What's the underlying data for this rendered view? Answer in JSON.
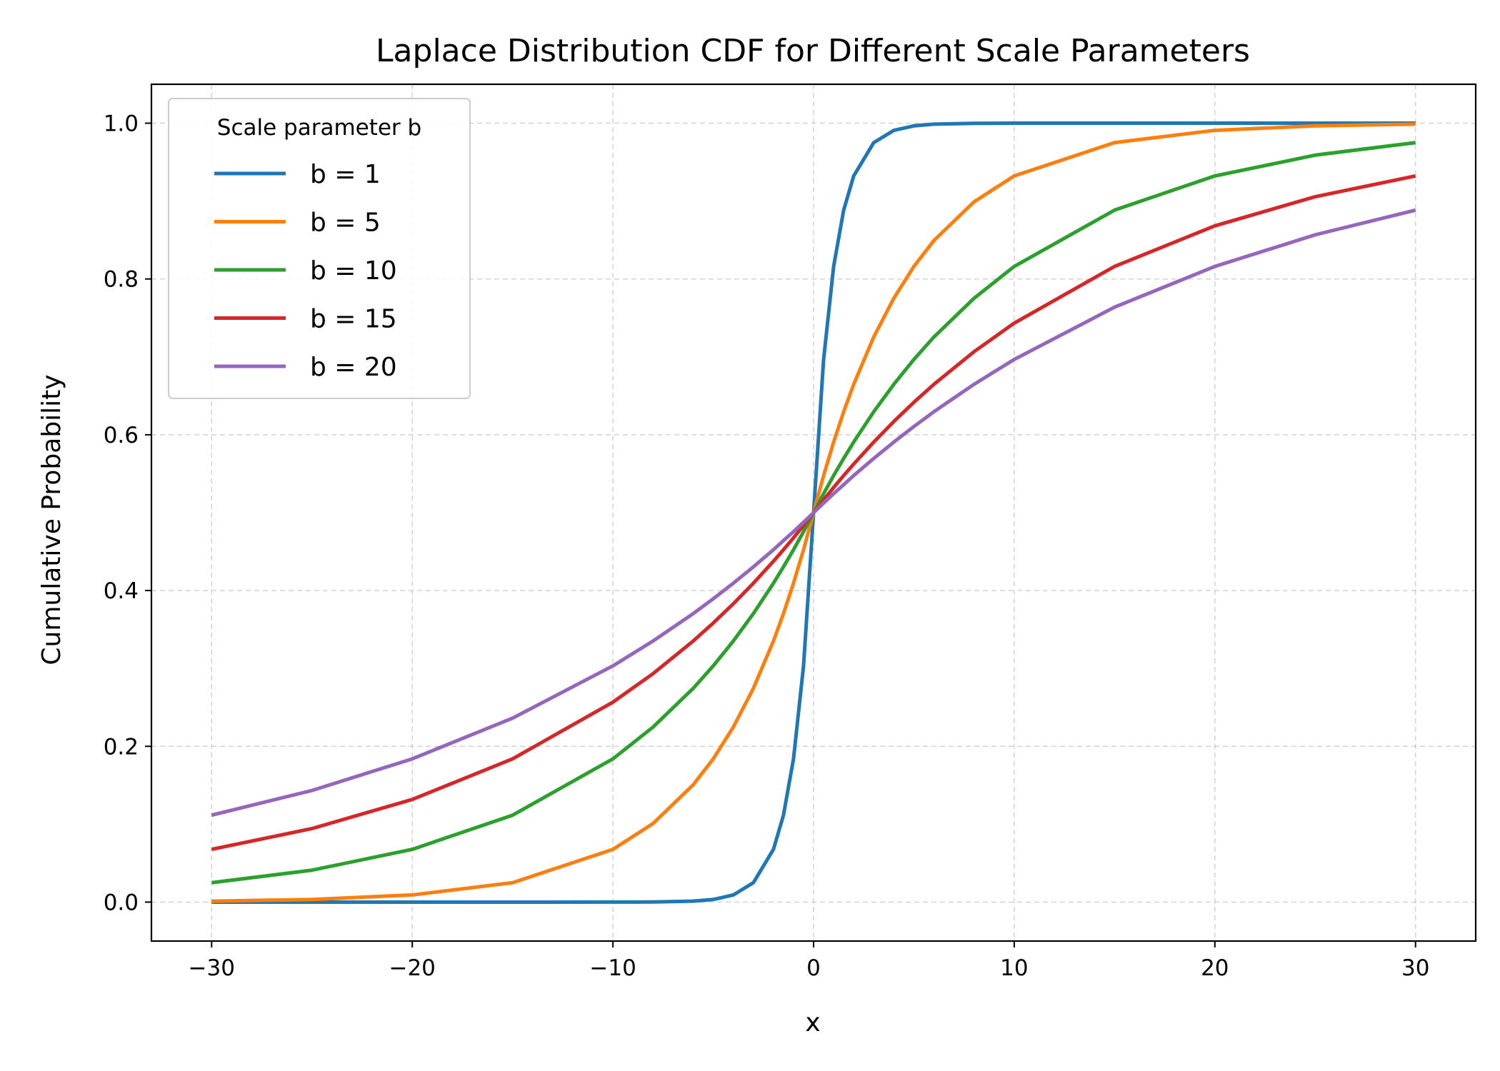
{
  "chart_data": {
    "type": "line",
    "title": "Laplace Distribution CDF for Different Scale Parameters",
    "xlabel": "x",
    "ylabel": "Cumulative Probability",
    "xlim": [
      -33,
      33
    ],
    "ylim": [
      -0.05,
      1.05
    ],
    "xticks": [
      -30,
      -20,
      -10,
      0,
      10,
      20,
      30
    ],
    "xtick_labels": [
      "−30",
      "−20",
      "−10",
      "0",
      "10",
      "20",
      "30"
    ],
    "yticks": [
      0.0,
      0.2,
      0.4,
      0.6,
      0.8,
      1.0
    ],
    "ytick_labels": [
      "0.0",
      "0.2",
      "0.4",
      "0.6",
      "0.8",
      "1.0"
    ],
    "grid": true,
    "legend": {
      "title": "Scale parameter b",
      "placement": "upper-left"
    },
    "x": [
      -30,
      -25,
      -20,
      -15,
      -10,
      -8,
      -6,
      -5,
      -4,
      -3,
      -2,
      -1.5,
      -1,
      -0.5,
      0,
      0.5,
      1,
      1.5,
      2,
      3,
      4,
      5,
      6,
      8,
      10,
      15,
      20,
      25,
      30
    ],
    "series": [
      {
        "name": "b = 1",
        "color": "#1f77b4",
        "values": [
          0.0,
          0.0,
          0.0,
          0.0,
          2e-05,
          0.00017,
          0.00124,
          0.00337,
          0.00916,
          0.0249,
          0.0677,
          0.1116,
          0.1839,
          0.3033,
          0.5,
          0.6967,
          0.8161,
          0.8884,
          0.9323,
          0.9751,
          0.9908,
          0.9966,
          0.9988,
          0.9998,
          1.0,
          1.0,
          1.0,
          1.0,
          1.0
        ]
      },
      {
        "name": "b = 5",
        "color": "#ff7f0e",
        "values": [
          0.0012,
          0.0034,
          0.0092,
          0.0249,
          0.0677,
          0.1009,
          0.1506,
          0.1839,
          0.2247,
          0.2744,
          0.3352,
          0.3704,
          0.4094,
          0.4524,
          0.5,
          0.5476,
          0.5906,
          0.6296,
          0.6648,
          0.7256,
          0.7753,
          0.8161,
          0.8494,
          0.8991,
          0.9323,
          0.9751,
          0.9908,
          0.9966,
          0.9988
        ]
      },
      {
        "name": "b = 10",
        "color": "#2ca02c",
        "values": [
          0.0249,
          0.041,
          0.0677,
          0.1116,
          0.1839,
          0.2247,
          0.2744,
          0.3033,
          0.3352,
          0.3704,
          0.4094,
          0.4304,
          0.4524,
          0.4756,
          0.5,
          0.5244,
          0.5476,
          0.5696,
          0.5906,
          0.6296,
          0.6648,
          0.6967,
          0.7256,
          0.7753,
          0.8161,
          0.8884,
          0.9323,
          0.959,
          0.9751
        ]
      },
      {
        "name": "b = 15",
        "color": "#d62728",
        "values": [
          0.0677,
          0.0944,
          0.1318,
          0.1839,
          0.2567,
          0.2933,
          0.3352,
          0.3583,
          0.383,
          0.4094,
          0.4376,
          0.4524,
          0.4677,
          0.4836,
          0.5,
          0.5164,
          0.5323,
          0.5476,
          0.5624,
          0.5906,
          0.617,
          0.6417,
          0.6648,
          0.7067,
          0.7433,
          0.8161,
          0.8682,
          0.9056,
          0.9323
        ]
      },
      {
        "name": "b = 20",
        "color": "#9467bd",
        "values": [
          0.1116,
          0.1433,
          0.1839,
          0.2362,
          0.3033,
          0.3352,
          0.3704,
          0.3894,
          0.4094,
          0.4304,
          0.4524,
          0.4641,
          0.4756,
          0.4877,
          0.5,
          0.5123,
          0.5244,
          0.5359,
          0.5476,
          0.5696,
          0.5906,
          0.6106,
          0.6296,
          0.6648,
          0.6967,
          0.7638,
          0.8161,
          0.8567,
          0.8884
        ]
      }
    ]
  }
}
